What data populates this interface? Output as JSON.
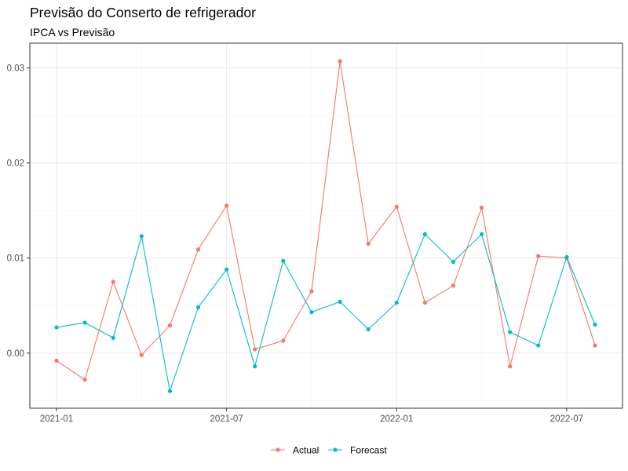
{
  "chart_data": {
    "type": "line",
    "title": "Previsão do Conserto de refrigerador",
    "subtitle": "IPCA vs Previsão",
    "xlabel": "",
    "ylabel": "",
    "x": [
      "2021-01",
      "2021-02",
      "2021-03",
      "2021-04",
      "2021-05",
      "2021-06",
      "2021-07",
      "2021-08",
      "2021-09",
      "2021-10",
      "2021-11",
      "2021-12",
      "2022-01",
      "2022-02",
      "2022-03",
      "2022-04",
      "2022-05",
      "2022-06",
      "2022-07",
      "2022-08"
    ],
    "x_ticks": [
      "2021-01",
      "2021-07",
      "2022-01",
      "2022-07"
    ],
    "y_ticks": [
      0.0,
      0.01,
      0.02,
      0.03
    ],
    "y_tick_labels": [
      "0.00",
      "0.01",
      "0.02",
      "0.03"
    ],
    "ylim": [
      -0.0058,
      0.0326
    ],
    "grid": true,
    "legend_position": "bottom",
    "series": [
      {
        "name": "Actual",
        "color": "#F8766D",
        "values": [
          -0.0008,
          -0.0028,
          0.0075,
          -0.0002,
          0.0029,
          0.0109,
          0.0155,
          0.0004,
          0.0013,
          0.0065,
          0.0307,
          0.0115,
          0.0154,
          0.0053,
          0.0071,
          0.0153,
          -0.0014,
          0.0102,
          0.01,
          0.0008
        ]
      },
      {
        "name": "Forecast",
        "color": "#00BFC4",
        "values": [
          0.0027,
          0.0032,
          0.0016,
          0.0123,
          -0.004,
          0.0048,
          0.0088,
          -0.0014,
          0.0097,
          0.0043,
          0.0054,
          0.0025,
          0.0053,
          0.0125,
          0.0096,
          0.0125,
          0.0022,
          0.0008,
          0.0101,
          0.003
        ]
      }
    ]
  }
}
